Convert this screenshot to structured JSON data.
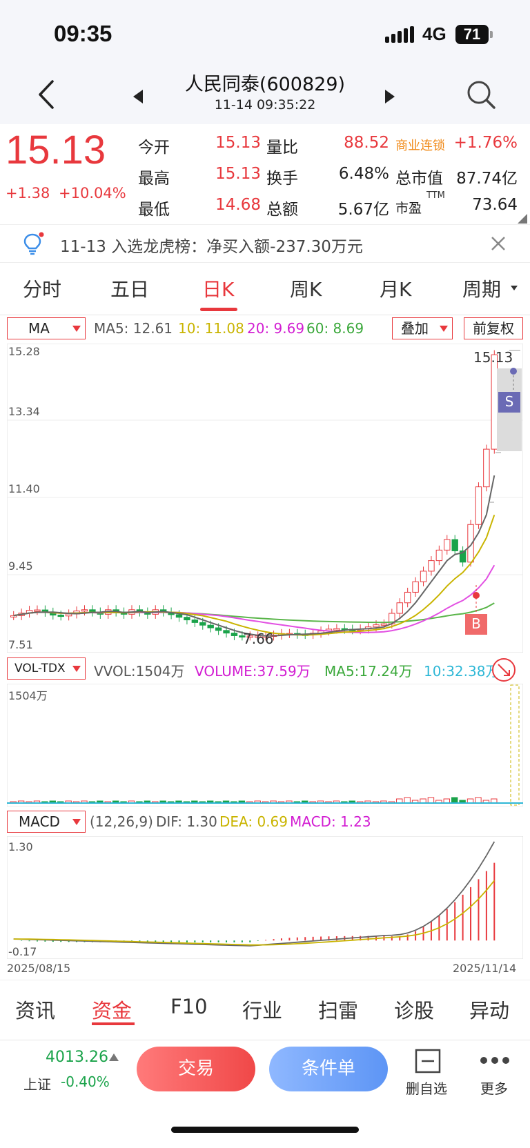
{
  "status": {
    "time": "09:35",
    "network": "4G",
    "battery": "71"
  },
  "header": {
    "title": "人民同泰(600829)",
    "datetime": "11-14 09:35:22"
  },
  "quote": {
    "price": "15.13",
    "change": "+1.38",
    "change_pct": "+10.04%",
    "rows": [
      [
        {
          "label": "今开",
          "value": "15.13"
        },
        {
          "label": "量比",
          "value": "88.52"
        },
        {
          "label": "商业连锁",
          "value": "+1.76%"
        }
      ],
      [
        {
          "label": "最高",
          "value": "15.13"
        },
        {
          "label": "换手",
          "value": "6.48%"
        },
        {
          "label": "总市值",
          "value": "87.74亿"
        }
      ],
      [
        {
          "label": "最低",
          "value": "14.68"
        },
        {
          "label": "总额",
          "value": "5.67亿"
        },
        {
          "label": "市盈",
          "value": "73.64",
          "sup": "TTM"
        }
      ]
    ]
  },
  "notice": {
    "text": "11-13 入选龙虎榜：净买入额-237.30万元"
  },
  "period_tabs": [
    "分时",
    "五日",
    "日K",
    "周K",
    "月K",
    "周期"
  ],
  "active_period": 2,
  "kline": {
    "indicator_select": "MA",
    "ma_labels": [
      "MA5: 12.61",
      "10: 11.08",
      "20: 9.69",
      "60: 8.69"
    ],
    "overlay_select": "叠加",
    "adjust_button": "前复权",
    "y_labels": [
      "15.28",
      "13.34",
      "11.40",
      "9.45",
      "7.51"
    ],
    "last_price_label": "15.13",
    "min_price_label": "7.66",
    "sell_marker": "S",
    "buy_marker": "B"
  },
  "volume": {
    "indicator_select": "VOL-TDX",
    "labels": [
      "VVOL:1504万",
      "VOLUME:37.59万",
      "MA5:17.24万",
      "10:32.38万"
    ],
    "y_label": "1504万"
  },
  "macd": {
    "indicator_select": "MACD",
    "labels": [
      "(12,26,9)",
      "DIF: 1.30",
      "DEA: 0.69",
      "MACD: 1.23"
    ],
    "y_top": "1.30",
    "y_bottom": "-0.17",
    "date_start": "2025/08/15",
    "date_end": "2025/11/14"
  },
  "bottom_tabs": [
    "资讯",
    "资金",
    "F10",
    "行业",
    "扫雷",
    "诊股",
    "异动"
  ],
  "active_bottom_tab": 1,
  "footer": {
    "index_value": "4013.26",
    "index_name": "上证",
    "index_change": "-0.40%",
    "trade_button": "交易",
    "condition_button": "条件单",
    "remove_watch": "删自选",
    "more": "更多"
  },
  "colors": {
    "up": "#e8383d",
    "down": "#1aa34a",
    "accent_orange": "#f08a18",
    "blue_button": "#6fa2f7"
  }
}
